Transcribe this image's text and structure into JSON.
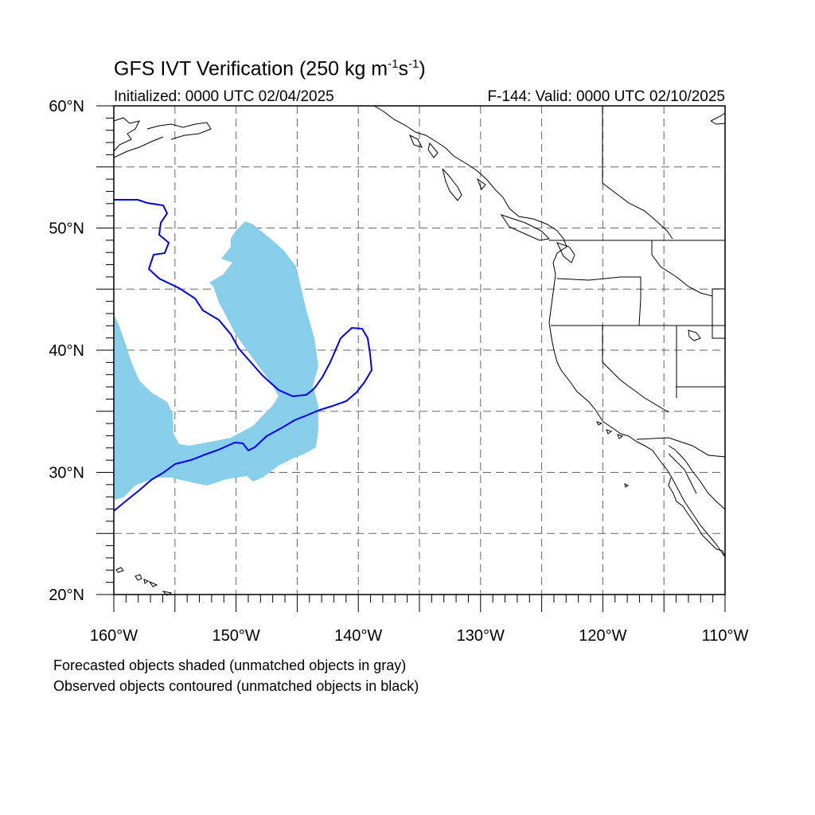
{
  "title": {
    "main": "GFS IVT Verification (250 kg m",
    "exp1": "-1",
    "mid": "s",
    "exp2": "-1",
    "close": ")"
  },
  "initialized": "Initialized: 0000 UTC 02/04/2025",
  "valid": "F-144: Valid: 0000 UTC 02/10/2025",
  "captions": [
    "Forecasted objects shaded (unmatched objects in gray)",
    "Observed objects contoured (unmatched objects in black)"
  ],
  "map": {
    "lon_range": [
      -160,
      -110
    ],
    "lat_range": [
      20,
      60
    ],
    "lon_labels": [
      {
        "lon": -160,
        "label": "160°W"
      },
      {
        "lon": -150,
        "label": "150°W"
      },
      {
        "lon": -140,
        "label": "140°W"
      },
      {
        "lon": -130,
        "label": "130°W"
      },
      {
        "lon": -120,
        "label": "120°W"
      },
      {
        "lon": -110,
        "label": "110°W"
      }
    ],
    "lat_labels": [
      {
        "lat": 60,
        "label": "60°N"
      },
      {
        "lat": 50,
        "label": "50°N"
      },
      {
        "lat": 40,
        "label": "40°N"
      },
      {
        "lat": 30,
        "label": "30°N"
      },
      {
        "lat": 20,
        "label": "20°N"
      }
    ],
    "gridlines": "dashed every 5°",
    "colors": {
      "forecast_fill": "#87ceeb",
      "observed_contour": "#0000ee",
      "coastline": "#000000"
    }
  }
}
